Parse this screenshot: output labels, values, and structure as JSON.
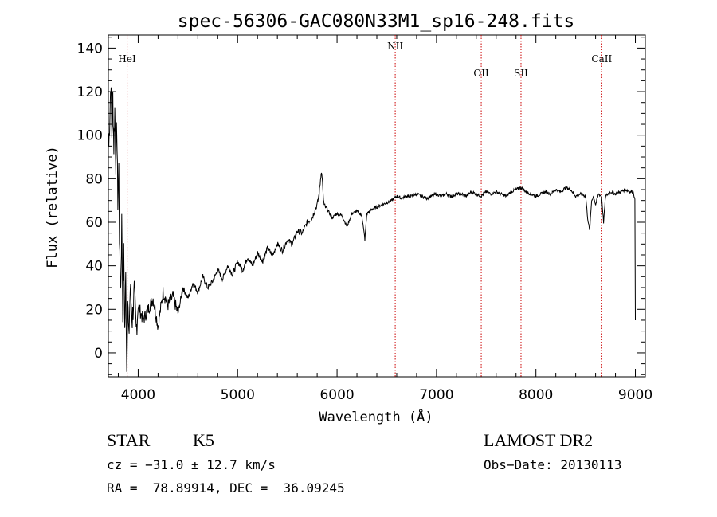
{
  "chart_data": {
    "type": "line",
    "title": "spec-56306-GAC080N33M1_sp16-248.fits",
    "xlabel": "Wavelength (Å)",
    "ylabel": "Flux (relative)",
    "xlim": [
      3700,
      9100
    ],
    "ylim": [
      -11,
      146
    ],
    "x_ticks": [
      4000,
      5000,
      6000,
      7000,
      8000,
      9000
    ],
    "y_ticks": [
      0,
      20,
      40,
      60,
      80,
      100,
      120,
      140
    ],
    "grid": false,
    "line_color": "#000000",
    "marker_color": "#cc0000",
    "series": [
      {
        "x": [
          3705,
          3715,
          3725,
          3735,
          3745,
          3755,
          3765,
          3775,
          3785,
          3795,
          3805,
          3815,
          3825,
          3835,
          3845,
          3855,
          3865,
          3875,
          3885,
          3895,
          3905,
          3920,
          3940,
          3960,
          3980,
          4000,
          4050,
          4100,
          4150,
          4200,
          4250,
          4300,
          4350,
          4400,
          4450,
          4500,
          4550,
          4600,
          4650,
          4700,
          4750,
          4800,
          4850,
          4900,
          4950,
          5000,
          5050,
          5100,
          5150,
          5200,
          5250,
          5300,
          5350,
          5400,
          5450,
          5500,
          5550,
          5600,
          5650,
          5700,
          5750,
          5780,
          5800,
          5820,
          5830,
          5840,
          5850,
          5860,
          5870,
          5880,
          5900,
          5950,
          6000,
          6050,
          6100,
          6150,
          6200,
          6250,
          6280,
          6300,
          6350,
          6400,
          6450,
          6500,
          6550,
          6600,
          6650,
          6700,
          6750,
          6800,
          6850,
          6900,
          6950,
          7000,
          7050,
          7100,
          7150,
          7200,
          7250,
          7300,
          7350,
          7400,
          7450,
          7500,
          7550,
          7600,
          7650,
          7700,
          7750,
          7800,
          7850,
          7900,
          7950,
          8000,
          8050,
          8100,
          8150,
          8200,
          8250,
          8300,
          8350,
          8400,
          8450,
          8500,
          8520,
          8540,
          8560,
          8580,
          8600,
          8630,
          8660,
          8680,
          8700,
          8750,
          8800,
          8850,
          8900,
          8950,
          8980,
          8995,
          9000
        ],
        "y": [
          95,
          110,
          125,
          100,
          118,
          95,
          112,
          88,
          105,
          70,
          85,
          40,
          30,
          60,
          20,
          45,
          10,
          35,
          -8,
          25,
          5,
          30,
          15,
          28,
          10,
          22,
          15,
          20,
          25,
          12,
          28,
          22,
          26,
          18,
          30,
          25,
          32,
          28,
          35,
          30,
          33,
          38,
          34,
          40,
          36,
          42,
          38,
          44,
          40,
          46,
          42,
          48,
          45,
          50,
          47,
          52,
          50,
          56,
          55,
          60,
          62,
          66,
          68,
          73,
          78,
          83,
          81,
          72,
          68,
          67,
          66,
          62,
          64,
          63,
          58,
          64,
          65,
          63,
          52,
          64,
          66,
          67,
          68,
          69,
          70,
          72,
          71,
          72,
          72,
          73,
          72,
          71,
          72,
          73,
          72,
          73,
          72,
          73,
          73,
          72,
          74,
          73,
          72,
          74,
          73,
          74,
          73,
          72,
          74,
          75,
          76,
          74,
          73,
          72,
          73,
          74,
          73,
          75,
          74,
          76,
          75,
          72,
          73,
          72,
          62,
          56,
          70,
          72,
          68,
          73,
          72,
          60,
          72,
          74,
          73,
          74,
          75,
          74,
          74,
          70,
          15
        ]
      }
    ],
    "lines": [
      {
        "label": "HeI",
        "x": 3889
      },
      {
        "label": "NII",
        "x": 6585
      },
      {
        "label": "OII",
        "x": 7450
      },
      {
        "label": "SII",
        "x": 7850
      },
      {
        "label": "CaII",
        "x": 8662
      }
    ]
  },
  "info": {
    "object_class": "STAR",
    "subclass": "K5",
    "survey": "LAMOST DR2",
    "cz": "cz = −31.0 ± 12.7 km/s",
    "obs_date": "Obs−Date: 20130113",
    "radec": "RA =  78.89914, DEC =  36.09245"
  }
}
